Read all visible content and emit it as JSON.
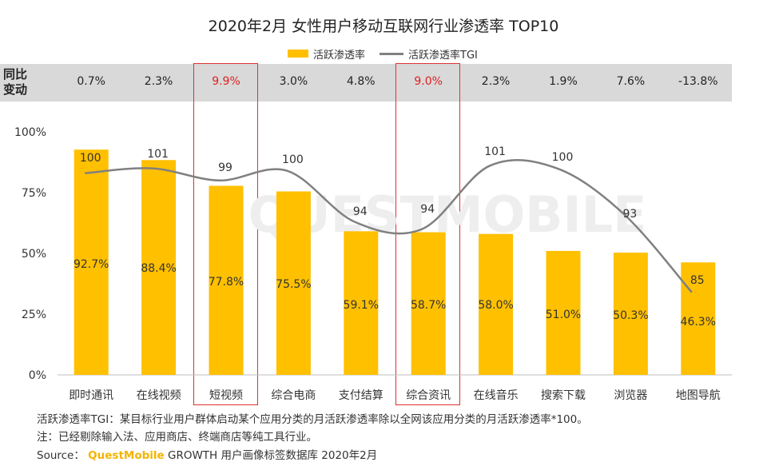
{
  "title": "2020年2月 女性用户移动互联网行业渗透率 TOP10",
  "legend": {
    "bar": "活跃渗透率",
    "line": "活跃渗透率TGI"
  },
  "yoy": {
    "label_line1": "同比",
    "label_line2": "变动",
    "values": [
      "0.7%",
      "2.3%",
      "9.9%",
      "3.0%",
      "4.8%",
      "9.0%",
      "2.3%",
      "1.9%",
      "7.6%",
      "-13.8%"
    ],
    "highlighted": [
      false,
      false,
      true,
      false,
      false,
      true,
      false,
      false,
      false,
      false
    ]
  },
  "watermark": "QUESTMOBILE",
  "chart_data": {
    "type": "bar",
    "title": "2020年2月 女性用户移动互联网行业渗透率 TOP10",
    "categories": [
      "即时通讯",
      "在线视频",
      "短视频",
      "综合电商",
      "支付结算",
      "综合资讯",
      "在线音乐",
      "搜索下载",
      "浏览器",
      "地图导航"
    ],
    "series": [
      {
        "name": "活跃渗透率",
        "kind": "bar",
        "color": "#FFC000",
        "values": [
          92.7,
          88.4,
          77.8,
          75.5,
          59.1,
          58.7,
          58.0,
          51.0,
          50.3,
          46.3
        ],
        "labels": [
          "92.7%",
          "88.4%",
          "77.8%",
          "75.5%",
          "59.1%",
          "58.7%",
          "58.0%",
          "51.0%",
          "50.3%",
          "46.3%"
        ]
      },
      {
        "name": "活跃渗透率TGI",
        "kind": "line",
        "color": "#808080",
        "values": [
          100,
          101,
          99,
          100,
          94,
          94,
          101,
          100,
          93,
          85
        ],
        "labels": [
          "100",
          "101",
          "99",
          "100",
          "94",
          "94",
          "101",
          "100",
          "93",
          "85"
        ],
        "line_y_percent": [
          83,
          85,
          80,
          84,
          63,
          60,
          86,
          85,
          66,
          34
        ]
      }
    ],
    "ylim": [
      0,
      100
    ],
    "yticks": [
      0,
      25,
      50,
      75,
      100
    ],
    "ytick_labels": [
      "0%",
      "25%",
      "50%",
      "75%",
      "100%"
    ],
    "xlabel": "",
    "ylabel": "",
    "legend_position": "top-center"
  },
  "footnotes": {
    "tgi_note": "活跃渗透率TGI：某目标行业用户群体启动某个应用分类的月活跃渗透率除以全网该应用分类的月活跃渗透率*100。",
    "note": "注：已经剔除输入法、应用商店、终端商店等纯工具行业。",
    "source_label": "Source：",
    "source_brand": "QuestMobile",
    "source_text": "GROWTH 用户画像标签数据库 2020年2月"
  }
}
